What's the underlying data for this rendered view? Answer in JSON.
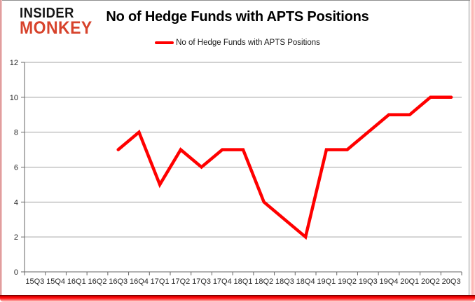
{
  "logo": {
    "line1": "INSIDER",
    "line2": "MONKEY"
  },
  "header": {
    "title": "No of Hedge Funds with APTS Positions"
  },
  "legend": {
    "label": "No of Hedge Funds with APTS Positions"
  },
  "colors": {
    "line": "#ff0000",
    "gridline": "#a3a3a3",
    "axis": "#666666",
    "logo_red": "#d7432c",
    "frame_red": "#e80000"
  },
  "chart_data": {
    "type": "line",
    "title": "No of Hedge Funds with APTS Positions",
    "xlabel": "",
    "ylabel": "",
    "categories": [
      "15Q3",
      "15Q4",
      "16Q1",
      "16Q2",
      "16Q3",
      "16Q4",
      "17Q1",
      "17Q2",
      "17Q3",
      "17Q4",
      "18Q1",
      "18Q2",
      "18Q3",
      "18Q4",
      "19Q1",
      "19Q2",
      "19Q3",
      "19Q4",
      "20Q1",
      "20Q2",
      "20Q3"
    ],
    "series": [
      {
        "name": "No of Hedge Funds with APTS Positions",
        "color": "#ff0000",
        "values": [
          null,
          null,
          null,
          null,
          7,
          8,
          5,
          7,
          6,
          7,
          7,
          4,
          3,
          2,
          7,
          7,
          8,
          9,
          9,
          10,
          10
        ]
      }
    ],
    "ylim": [
      0,
      12
    ],
    "yticks": [
      0,
      2,
      4,
      6,
      8,
      10,
      12
    ],
    "grid": "horizontal",
    "legend_position": "top-center"
  }
}
